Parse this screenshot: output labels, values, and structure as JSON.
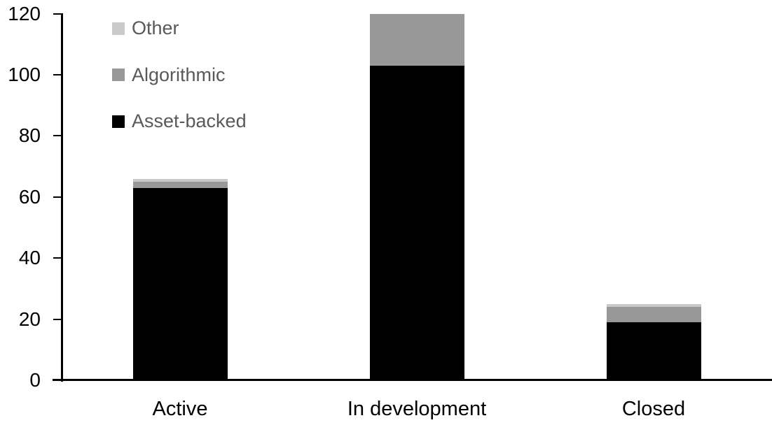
{
  "chart_data": {
    "type": "bar",
    "stacked": true,
    "title": "",
    "xlabel": "",
    "ylabel": "",
    "categories": [
      "Active",
      "In development",
      "Closed"
    ],
    "series": [
      {
        "name": "Asset-backed",
        "color": "#000000",
        "values": [
          63,
          103,
          19
        ]
      },
      {
        "name": "Algorithmic",
        "color": "#989898",
        "values": [
          2,
          17,
          5
        ]
      },
      {
        "name": "Other",
        "color": "#c9c9c9",
        "values": [
          1,
          0,
          1
        ]
      }
    ],
    "stack_totals": [
      66,
      120,
      25
    ],
    "ylim": [
      0,
      120
    ],
    "ytick_step": 20,
    "yticks": [
      0,
      20,
      40,
      60,
      80,
      100,
      120
    ],
    "grid": false,
    "legend_position": "top-left",
    "legend_order": [
      "Other",
      "Algorithmic",
      "Asset-backed"
    ],
    "colors": {
      "axis": "#000000",
      "tick_label": "#000000",
      "category_label": "#000000",
      "legend_text": "#595959",
      "background": "#ffffff"
    }
  }
}
